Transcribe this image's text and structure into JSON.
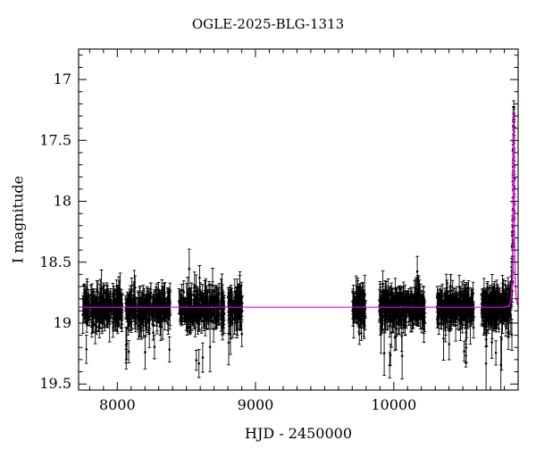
{
  "page": {
    "background": "#ffffff"
  },
  "chart_data": {
    "type": "scatter",
    "title": "OGLE-2025-BLG-1313",
    "xlabel": "HJD - 2450000",
    "ylabel": "I magnitude",
    "xlim": [
      7720,
      10900
    ],
    "ylim_mag": [
      19.55,
      16.75
    ],
    "x_major_ticks": [
      8000,
      9000,
      10000
    ],
    "x_minor_step": 100,
    "y_major_ticks": [
      17,
      17.5,
      18,
      18.5,
      19,
      19.5
    ],
    "y_minor_step": 0.1,
    "grid": false,
    "legend": "none",
    "point_color": "#000000",
    "model_color": "#ee00ee",
    "baseline_mag": 18.87,
    "peak_mag": 17.25,
    "model": {
      "type": "paczynski",
      "t0": 10868,
      "tE": 10,
      "u0": 0.23,
      "I0": 18.87
    },
    "seasons": [
      {
        "x_start": 7750,
        "x_end": 8035,
        "n": 230
      },
      {
        "x_start": 8060,
        "x_end": 8385,
        "n": 210
      },
      {
        "x_start": 8445,
        "x_end": 8775,
        "n": 230
      },
      {
        "x_start": 8800,
        "x_end": 8905,
        "n": 75
      },
      {
        "x_start": 9700,
        "x_end": 9795,
        "n": 85
      },
      {
        "x_start": 9895,
        "x_end": 10225,
        "n": 260
      },
      {
        "x_start": 10315,
        "x_end": 10580,
        "n": 210
      },
      {
        "x_start": 10635,
        "x_end": 10873,
        "n": 250,
        "extra": {
          "x_start": 10856,
          "x_end": 10873,
          "n": 36
        }
      }
    ],
    "noise": {
      "sigma": 0.062,
      "err_base": 0.055,
      "err_spread": 0.045,
      "outlier_prob": 0.04,
      "seed": 1313
    }
  }
}
